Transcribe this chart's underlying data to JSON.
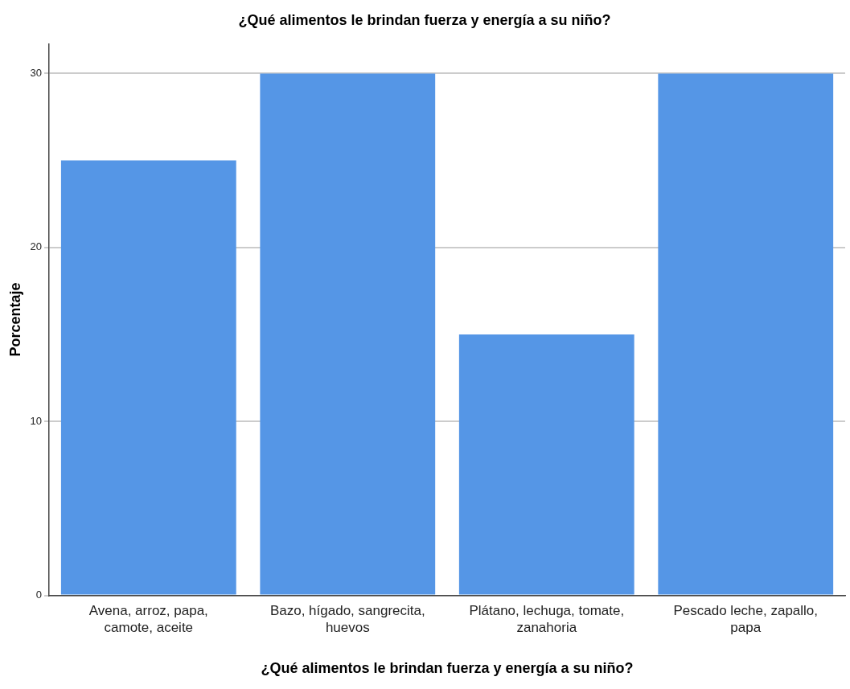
{
  "chart_data": {
    "type": "bar",
    "title": "¿Qué alimentos le brindan fuerza y energía a su niño?",
    "xlabel": "¿Qué alimentos le brindan fuerza y energía a su niño?",
    "ylabel": "Porcentaje",
    "categories": [
      "Avena, arroz, papa, camote, aceite",
      "Bazo, hígado, sangrecita, huevos",
      "Plátano, lechuga, tomate, zanahoria",
      "Pescado leche, zapallo, papa"
    ],
    "values": [
      25,
      30,
      15,
      30
    ],
    "color": "#5596e6",
    "ylim": [
      0,
      31.7
    ],
    "yticks": [
      0,
      10,
      20,
      30
    ],
    "grid": "y"
  }
}
